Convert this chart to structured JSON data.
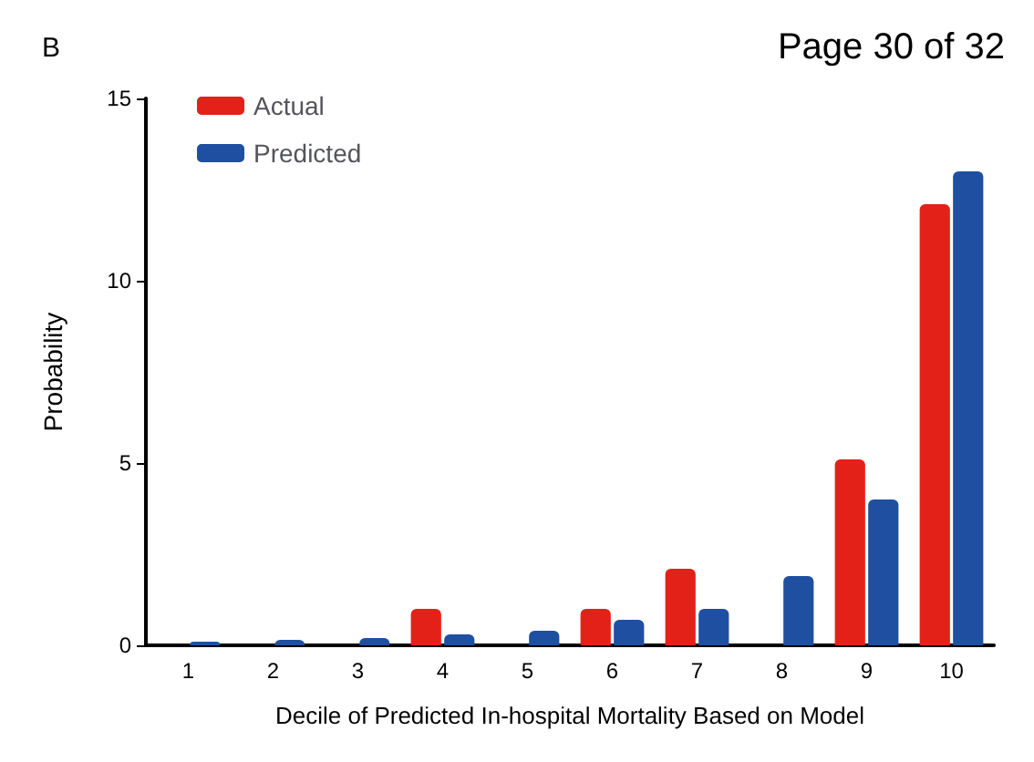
{
  "chart_data": {
    "type": "bar",
    "title": "B",
    "annotations": [
      "Page 30 of 32"
    ],
    "xlabel": "Decile of Predicted In-hospital Mortality Based on Model",
    "ylabel": "Probability",
    "categories": [
      "1",
      "2",
      "3",
      "4",
      "5",
      "6",
      "7",
      "8",
      "9",
      "10"
    ],
    "series": [
      {
        "name": "Actual",
        "color": "#e32119",
        "values": [
          0,
          0,
          0,
          1.0,
          0,
          1.0,
          2.1,
          0,
          5.1,
          12.1
        ]
      },
      {
        "name": "Predicted",
        "color": "#1f4fa0",
        "values": [
          0.1,
          0.15,
          0.2,
          0.3,
          0.4,
          0.7,
          1.0,
          1.9,
          4.0,
          13.0
        ]
      }
    ],
    "ylim": [
      0,
      15
    ],
    "yticks": [
      0,
      5,
      10,
      15
    ],
    "grid": false,
    "legend": "top left"
  }
}
